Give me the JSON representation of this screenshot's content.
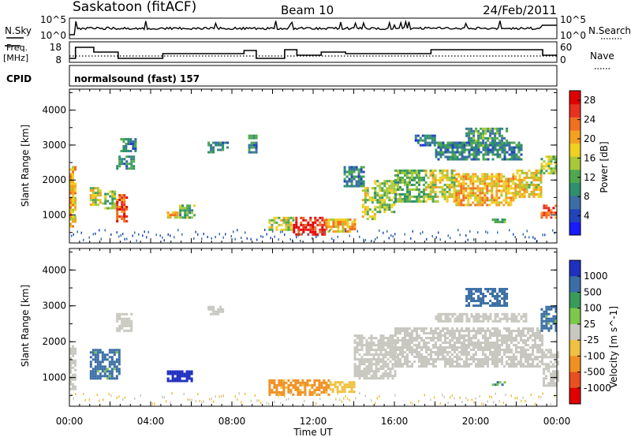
{
  "header": {
    "station": "Saskatoon (fitACF)",
    "beam": "Beam 10",
    "date": "24/Feb/2011"
  },
  "noise_panel": {
    "left_label": "N.Sky",
    "right_label": "N.Search",
    "ticks_left": [
      "10^5",
      "10^0"
    ],
    "ticks_right": [
      "10^5",
      "10^0"
    ]
  },
  "freq_panel": {
    "left_label_1": "Freq.",
    "left_label_2": "[MHz]",
    "right_label": "Nave",
    "ticks_left": [
      "18",
      "8"
    ],
    "ticks_right": [
      "60",
      "0"
    ]
  },
  "cpid": {
    "label": "CPID",
    "value": "normalsound (fast) 157"
  },
  "colors": {
    "power_scale": [
      "#1a1aff",
      "#2244bb",
      "#3a6ea5",
      "#2f8f6f",
      "#4fa84f",
      "#a8c83a",
      "#f0d020",
      "#f4a020",
      "#f07020",
      "#e83020",
      "#e00000"
    ],
    "velocity_scale": [
      "#2030c0",
      "#3a6ea5",
      "#3a9a5a",
      "#7cc84a",
      "#c8c8c0",
      "#f0c040",
      "#f09020",
      "#e85020",
      "#e00000"
    ],
    "ground_scatter": "#bebebe"
  },
  "chart_data": [
    {
      "type": "heatmap",
      "title": "",
      "xlabel": "",
      "ylabel": "Slant Range [km]",
      "xlim": [
        0,
        24
      ],
      "ylim": [
        200,
        4600
      ],
      "yticks": [
        "1000",
        "2000",
        "3000",
        "4000"
      ],
      "colorbar": {
        "label": "Power [dB]",
        "ticks": [
          "4",
          "8",
          "12",
          "16",
          "20",
          "24",
          "28"
        ],
        "range": [
          0,
          30
        ]
      },
      "regions": [
        {
          "t0": 0.0,
          "t1": 0.3,
          "r0": 700,
          "r1": 2400,
          "value": 20
        },
        {
          "t0": 1.0,
          "t1": 1.5,
          "r0": 1300,
          "r1": 1800,
          "value": 16
        },
        {
          "t0": 1.6,
          "t1": 2.2,
          "r0": 1200,
          "r1": 1700,
          "value": 12
        },
        {
          "t0": 2.3,
          "t1": 2.8,
          "r0": 800,
          "r1": 1600,
          "value": 26
        },
        {
          "t0": 2.3,
          "t1": 3.2,
          "r0": 2300,
          "r1": 2700,
          "value": 8
        },
        {
          "t0": 2.5,
          "t1": 3.2,
          "r0": 2800,
          "r1": 3200,
          "value": 8
        },
        {
          "t0": 4.8,
          "t1": 5.3,
          "r0": 900,
          "r1": 1100,
          "value": 20
        },
        {
          "t0": 5.4,
          "t1": 6.2,
          "r0": 900,
          "r1": 1300,
          "value": 12
        },
        {
          "t0": 6.8,
          "t1": 7.8,
          "r0": 2800,
          "r1": 3100,
          "value": 8
        },
        {
          "t0": 8.8,
          "t1": 9.2,
          "r0": 2800,
          "r1": 3300,
          "value": 8
        },
        {
          "t0": 9.8,
          "t1": 11.0,
          "r0": 550,
          "r1": 950,
          "value": 16
        },
        {
          "t0": 11.0,
          "t1": 12.6,
          "r0": 450,
          "r1": 950,
          "value": 28
        },
        {
          "t0": 12.6,
          "t1": 14.0,
          "r0": 550,
          "r1": 900,
          "value": 20
        },
        {
          "t0": 13.5,
          "t1": 14.5,
          "r0": 1800,
          "r1": 2400,
          "value": 8
        },
        {
          "t0": 14.4,
          "t1": 15.0,
          "r0": 900,
          "r1": 1800,
          "value": 16
        },
        {
          "t0": 15.0,
          "t1": 16.0,
          "r0": 1100,
          "r1": 2000,
          "value": 14
        },
        {
          "t0": 16.0,
          "t1": 17.5,
          "r0": 1400,
          "r1": 2300,
          "value": 12
        },
        {
          "t0": 17.5,
          "t1": 19.0,
          "r0": 1400,
          "r1": 2300,
          "value": 16
        },
        {
          "t0": 19.0,
          "t1": 22.0,
          "r0": 1300,
          "r1": 2200,
          "value": 20
        },
        {
          "t0": 22.0,
          "t1": 23.2,
          "r0": 1500,
          "r1": 2300,
          "value": 18
        },
        {
          "t0": 23.2,
          "t1": 24.0,
          "r0": 900,
          "r1": 1300,
          "value": 26
        },
        {
          "t0": 23.2,
          "t1": 24.0,
          "r0": 2200,
          "r1": 2700,
          "value": 14
        },
        {
          "t0": 18.0,
          "t1": 22.2,
          "r0": 2600,
          "r1": 3100,
          "value": 8
        },
        {
          "t0": 19.5,
          "t1": 21.5,
          "r0": 3000,
          "r1": 3500,
          "value": 10
        },
        {
          "t0": 20.8,
          "t1": 21.4,
          "r0": 800,
          "r1": 900,
          "value": 12
        },
        {
          "t0": 17.0,
          "t1": 18.0,
          "r0": 3000,
          "r1": 3300,
          "value": 6
        }
      ]
    },
    {
      "type": "heatmap",
      "title": "",
      "xlabel": "Time UT",
      "ylabel": "Slant Range [km]",
      "xlim": [
        0,
        24
      ],
      "ylim": [
        200,
        4600
      ],
      "yticks": [
        "1000",
        "2000",
        "3000",
        "4000"
      ],
      "xticks": [
        "00:00",
        "04:00",
        "08:00",
        "12:00",
        "16:00",
        "20:00",
        "00:00"
      ],
      "colorbar": {
        "label": "Velocity [m s^-1]",
        "ticks": [
          "1000",
          "500",
          "100",
          "25",
          "-25",
          "-100",
          "-500",
          "-1000"
        ]
      },
      "regions": [
        {
          "t0": 0.0,
          "t1": 0.3,
          "r0": 700,
          "r1": 1900,
          "value": 0
        },
        {
          "t0": 1.0,
          "t1": 2.5,
          "r0": 1000,
          "r1": 1800,
          "value": 150
        },
        {
          "t0": 2.3,
          "t1": 3.0,
          "r0": 2300,
          "r1": 2800,
          "value": 0
        },
        {
          "t0": 4.8,
          "t1": 6.0,
          "r0": 900,
          "r1": 1200,
          "value": 800
        },
        {
          "t0": 6.8,
          "t1": 7.5,
          "r0": 2800,
          "r1": 3000,
          "value": 0
        },
        {
          "t0": 9.8,
          "t1": 12.8,
          "r0": 550,
          "r1": 950,
          "value": -150
        },
        {
          "t0": 12.8,
          "t1": 14.0,
          "r0": 600,
          "r1": 900,
          "value": -60
        },
        {
          "t0": 14.0,
          "t1": 16.0,
          "r0": 1000,
          "r1": 2200,
          "value": 0
        },
        {
          "t0": 16.0,
          "t1": 23.3,
          "r0": 1300,
          "r1": 2400,
          "value": 0
        },
        {
          "t0": 23.3,
          "t1": 24.0,
          "r0": 800,
          "r1": 1800,
          "value": 0
        },
        {
          "t0": 18.0,
          "t1": 22.5,
          "r0": 2600,
          "r1": 2800,
          "value": 0
        },
        {
          "t0": 19.5,
          "t1": 21.5,
          "r0": 3000,
          "r1": 3500,
          "value": 250
        },
        {
          "t0": 23.2,
          "t1": 24.0,
          "r0": 2300,
          "r1": 3000,
          "value": 150
        },
        {
          "t0": 20.8,
          "t1": 21.4,
          "r0": 800,
          "r1": 900,
          "value": 100
        }
      ]
    }
  ]
}
